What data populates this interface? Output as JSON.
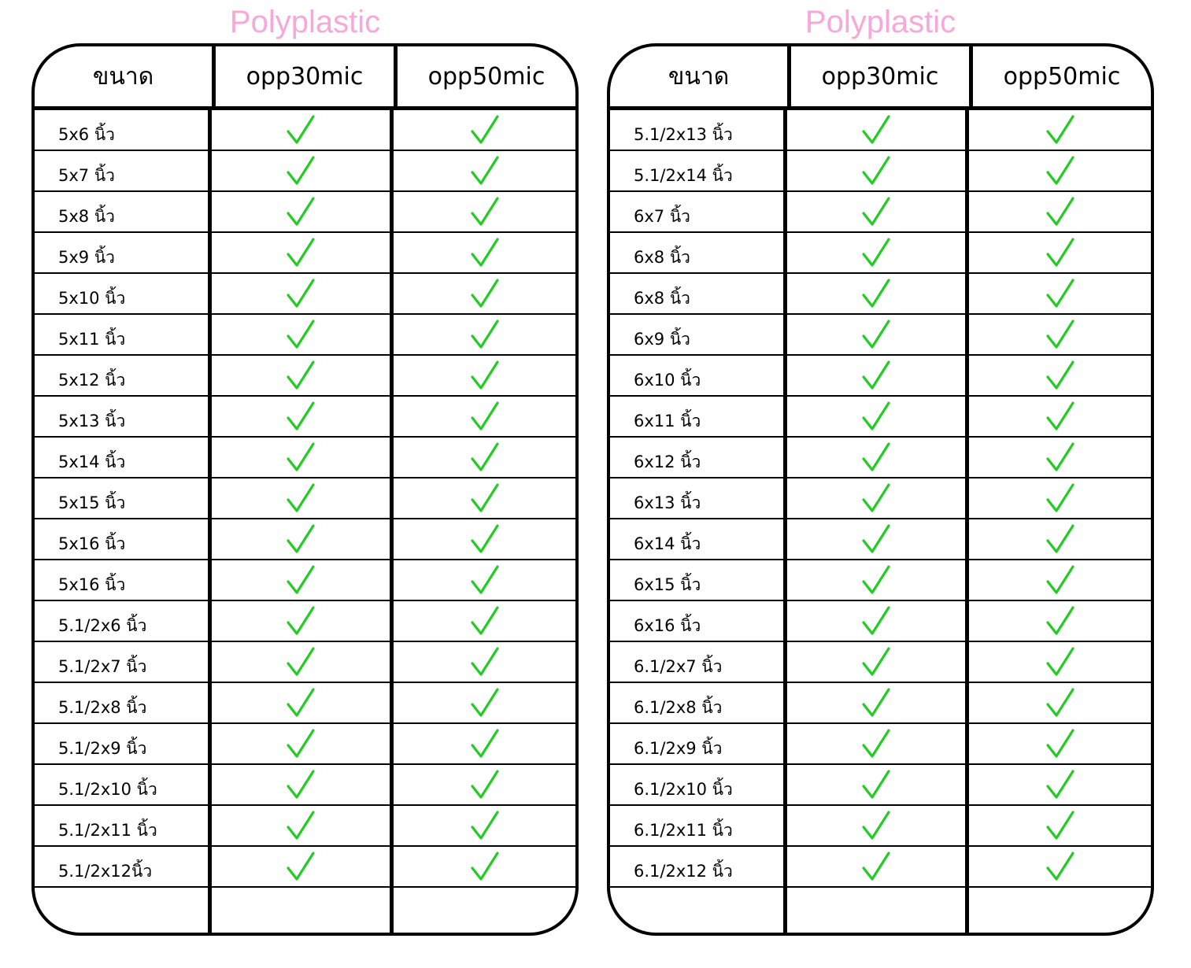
{
  "headers": {
    "size": "ขนาด",
    "opp30": "opp30mic",
    "opp50": "opp50mic"
  },
  "watermark": "Polyplastic",
  "check_color": "#22cc22",
  "left_table": [
    {
      "size": "5x6 นิ้ว",
      "opp30": true,
      "opp50": true
    },
    {
      "size": "5x7 นิ้ว",
      "opp30": true,
      "opp50": true
    },
    {
      "size": "5x8 นิ้ว",
      "opp30": true,
      "opp50": true
    },
    {
      "size": "5x9 นิ้ว",
      "opp30": true,
      "opp50": true
    },
    {
      "size": "5x10 นิ้ว",
      "opp30": true,
      "opp50": true
    },
    {
      "size": "5x11 นิ้ว",
      "opp30": true,
      "opp50": true
    },
    {
      "size": "5x12 นิ้ว",
      "opp30": true,
      "opp50": true
    },
    {
      "size": "5x13 นิ้ว",
      "opp30": true,
      "opp50": true
    },
    {
      "size": "5x14 นิ้ว",
      "opp30": true,
      "opp50": true
    },
    {
      "size": "5x15 นิ้ว",
      "opp30": true,
      "opp50": true
    },
    {
      "size": "5x16 นิ้ว",
      "opp30": true,
      "opp50": true
    },
    {
      "size": "5x16 นิ้ว",
      "opp30": true,
      "opp50": true
    },
    {
      "size": "5.1/2x6 นิ้ว",
      "opp30": true,
      "opp50": true
    },
    {
      "size": "5.1/2x7 นิ้ว",
      "opp30": true,
      "opp50": true
    },
    {
      "size": "5.1/2x8 นิ้ว",
      "opp30": true,
      "opp50": true
    },
    {
      "size": "5.1/2x9 นิ้ว",
      "opp30": true,
      "opp50": true
    },
    {
      "size": "5.1/2x10 นิ้ว",
      "opp30": true,
      "opp50": true
    },
    {
      "size": "5.1/2x11 นิ้ว",
      "opp30": true,
      "opp50": true
    },
    {
      "size": "5.1/2x12นิ้ว",
      "opp30": true,
      "opp50": true
    }
  ],
  "right_table": [
    {
      "size": "5.1/2x13 นิ้ว",
      "opp30": true,
      "opp50": true
    },
    {
      "size": "5.1/2x14 นิ้ว",
      "opp30": true,
      "opp50": true
    },
    {
      "size": "6x7 นิ้ว",
      "opp30": true,
      "opp50": true
    },
    {
      "size": "6x8 นิ้ว",
      "opp30": true,
      "opp50": true
    },
    {
      "size": "6x8 นิ้ว",
      "opp30": true,
      "opp50": true
    },
    {
      "size": "6x9 นิ้ว",
      "opp30": true,
      "opp50": true
    },
    {
      "size": "6x10 นิ้ว",
      "opp30": true,
      "opp50": true
    },
    {
      "size": "6x11 นิ้ว",
      "opp30": true,
      "opp50": true
    },
    {
      "size": "6x12 นิ้ว",
      "opp30": true,
      "opp50": true
    },
    {
      "size": "6x13 นิ้ว",
      "opp30": true,
      "opp50": true
    },
    {
      "size": "6x14 นิ้ว",
      "opp30": true,
      "opp50": true
    },
    {
      "size": "6x15 นิ้ว",
      "opp30": true,
      "opp50": true
    },
    {
      "size": "6x16 นิ้ว",
      "opp30": true,
      "opp50": true
    },
    {
      "size": "6.1/2x7 นิ้ว",
      "opp30": true,
      "opp50": true
    },
    {
      "size": "6.1/2x8 นิ้ว",
      "opp30": true,
      "opp50": true
    },
    {
      "size": "6.1/2x9 นิ้ว",
      "opp30": true,
      "opp50": true
    },
    {
      "size": "6.1/2x10 นิ้ว",
      "opp30": true,
      "opp50": true
    },
    {
      "size": "6.1/2x11 นิ้ว",
      "opp30": true,
      "opp50": true
    },
    {
      "size": "6.1/2x12 นิ้ว",
      "opp30": true,
      "opp50": true
    }
  ]
}
